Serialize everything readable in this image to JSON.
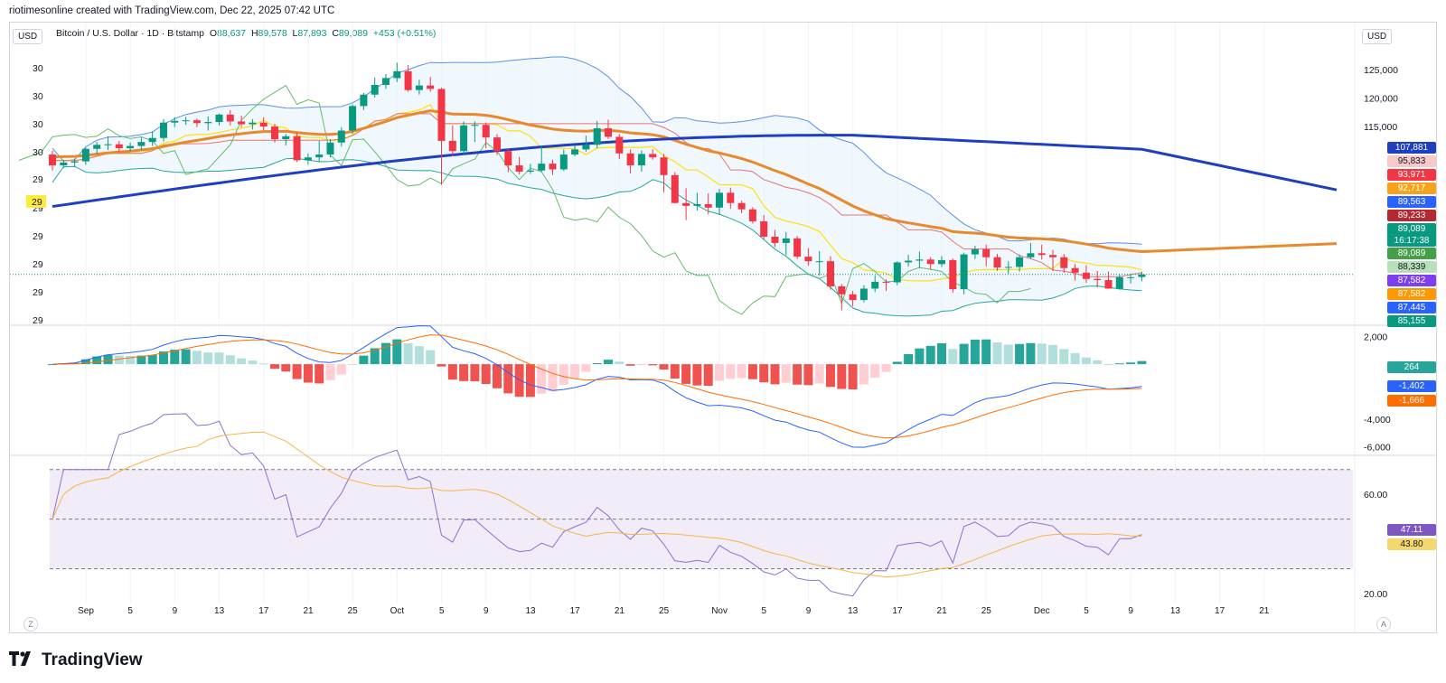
{
  "header_text": "riotimesonline created with TradingView.com, Dec 22, 2025 07:42 UTC",
  "currency_left": "USD",
  "currency_right": "USD",
  "legend": {
    "symbol": "Bitcoin / U.S. Dollar · 1D · Bitstamp",
    "o_label": "O",
    "o_value": "88,637",
    "h_label": "H",
    "h_value": "89,578",
    "l_label": "L",
    "l_value": "87,893",
    "c_label": "C",
    "c_value": "89,089",
    "change": "+453 (+0.51%)"
  },
  "brand": "TradingView",
  "corner_left": "Z",
  "corner_right": "A",
  "colors": {
    "up": "#089981",
    "down": "#f23645",
    "sma200": "#1e3fbf",
    "ema": "#e8892c",
    "bb": "#5b8fe8",
    "rsi": "#8e6fcf",
    "signal": "#f5b642"
  },
  "chart_data": [
    {
      "type": "candlestick",
      "name": "price",
      "y_tick_labels_right": [
        "125,000",
        "120,000",
        "115,000"
      ],
      "y_tick_labels_left": [
        "30",
        "30",
        "30",
        "30",
        "29",
        "29",
        "29",
        "29",
        "29",
        "29"
      ],
      "x_tick_labels": [
        "Sep",
        "5",
        "9",
        "13",
        "17",
        "21",
        "25",
        "Oct",
        "5",
        "9",
        "13",
        "17",
        "21",
        "25",
        "Nov",
        "5",
        "9",
        "13",
        "17",
        "21",
        "25",
        "Dec",
        "5",
        "9",
        "13",
        "17",
        "21"
      ],
      "ylim": [
        80500,
        128000
      ],
      "candles": [
        [
          110100,
          110800,
          107300,
          108200
        ],
        [
          108200,
          109200,
          107700,
          108700
        ],
        [
          108700,
          109400,
          107900,
          108900
        ],
        [
          108900,
          111300,
          108300,
          111100
        ],
        [
          111100,
          112300,
          110200,
          111800
        ],
        [
          111800,
          113300,
          110900,
          111900
        ],
        [
          111900,
          112500,
          110500,
          111200
        ],
        [
          111200,
          112200,
          110600,
          111600
        ],
        [
          111600,
          113100,
          110900,
          112300
        ],
        [
          112300,
          114200,
          111600,
          113000
        ],
        [
          113000,
          116300,
          112400,
          115700
        ],
        [
          115700,
          116600,
          114900,
          116000
        ],
        [
          116000,
          116700,
          115300,
          116100
        ],
        [
          116100,
          116400,
          114900,
          115600
        ],
        [
          115600,
          116800,
          114300,
          115800
        ],
        [
          115800,
          117300,
          115200,
          117100
        ],
        [
          117100,
          117900,
          115200,
          115900
        ],
        [
          115900,
          116900,
          114900,
          115400
        ],
        [
          115400,
          116300,
          114500,
          115700
        ],
        [
          115700,
          116600,
          114400,
          115000
        ],
        [
          115000,
          115500,
          112200,
          112800
        ],
        [
          112800,
          113700,
          111700,
          113300
        ],
        [
          113300,
          113900,
          108800,
          109100
        ],
        [
          109100,
          110300,
          108300,
          109600
        ],
        [
          109600,
          112500,
          108800,
          110100
        ],
        [
          110100,
          112800,
          109600,
          112200
        ],
        [
          112200,
          114900,
          111500,
          114300
        ],
        [
          114300,
          118900,
          113700,
          118600
        ],
        [
          118600,
          120900,
          117900,
          120600
        ],
        [
          120600,
          123600,
          120100,
          122300
        ],
        [
          122300,
          124200,
          121600,
          123500
        ],
        [
          123500,
          126200,
          122800,
          124700
        ],
        [
          124700,
          125800,
          121100,
          121400
        ],
        [
          121400,
          123200,
          120600,
          122200
        ],
        [
          122200,
          123700,
          121100,
          121600
        ],
        [
          121600,
          121800,
          104800,
          112500
        ],
        [
          112500,
          115200,
          109800,
          110700
        ],
        [
          110700,
          115900,
          110100,
          115200
        ],
        [
          115200,
          115900,
          112300,
          115300
        ],
        [
          115300,
          115700,
          111200,
          113100
        ],
        [
          113100,
          113700,
          110000,
          110700
        ],
        [
          110700,
          111200,
          107000,
          108200
        ],
        [
          108200,
          109700,
          106600,
          107100
        ],
        [
          107100,
          108500,
          106700,
          107300
        ],
        [
          107300,
          111700,
          107000,
          108500
        ],
        [
          108500,
          109200,
          106500,
          107500
        ],
        [
          107500,
          111000,
          107200,
          110100
        ],
        [
          110100,
          111700,
          109800,
          111000
        ],
        [
          111000,
          113400,
          110600,
          111800
        ],
        [
          111800,
          116000,
          111200,
          114700
        ],
        [
          114700,
          116200,
          112800,
          113200
        ],
        [
          113200,
          113700,
          109300,
          110300
        ],
        [
          110300,
          111000,
          106800,
          108200
        ],
        [
          108200,
          110800,
          107100,
          110200
        ],
        [
          110200,
          111000,
          109200,
          109600
        ],
        [
          109600,
          110200,
          103500,
          106500
        ],
        [
          106500,
          107000,
          101500,
          101600
        ],
        [
          101600,
          104200,
          98600,
          101100
        ],
        [
          101100,
          103400,
          100300,
          101400
        ],
        [
          101400,
          103300,
          99600,
          100800
        ],
        [
          100800,
          104100,
          99500,
          103400
        ],
        [
          103400,
          104300,
          100600,
          101600
        ],
        [
          101600,
          102000,
          99800,
          100500
        ],
        [
          100500,
          100900,
          98000,
          98400
        ],
        [
          98400,
          99500,
          95200,
          95700
        ],
        [
          95700,
          96900,
          93900,
          94600
        ],
        [
          94600,
          96500,
          92500,
          95400
        ],
        [
          95400,
          95800,
          91800,
          92200
        ],
        [
          92200,
          93700,
          90600,
          91400
        ],
        [
          91400,
          93200,
          88900,
          91400
        ],
        [
          91400,
          92300,
          86400,
          87000
        ],
        [
          87000,
          87400,
          82800,
          85600
        ],
        [
          85600,
          86200,
          83500,
          84600
        ],
        [
          84600,
          87200,
          84200,
          86600
        ],
        [
          86600,
          88900,
          86000,
          87800
        ],
        [
          87800,
          88200,
          86200,
          87700
        ],
        [
          87700,
          91400,
          87200,
          91200
        ],
        [
          91200,
          92500,
          90500,
          91500
        ],
        [
          91500,
          93100,
          90200,
          91700
        ],
        [
          91700,
          92100,
          89900,
          90900
        ],
        [
          90900,
          92300,
          90400,
          91600
        ],
        [
          91600,
          91900,
          85900,
          86500
        ],
        [
          86500,
          92900,
          85600,
          92600
        ],
        [
          92600,
          94100,
          91800,
          93500
        ],
        [
          93500,
          94300,
          90500,
          92100
        ],
        [
          92100,
          92700,
          89700,
          90300
        ],
        [
          90300,
          91400,
          89200,
          90400
        ],
        [
          90400,
          92600,
          89600,
          92100
        ],
        [
          92100,
          94600,
          91800,
          92800
        ],
        [
          92800,
          94300,
          91700,
          92500
        ],
        [
          92500,
          93400,
          89700,
          92100
        ],
        [
          92100,
          92700,
          89400,
          90200
        ],
        [
          90200,
          90900,
          88000,
          89400
        ],
        [
          89400,
          90700,
          87600,
          88300
        ],
        [
          88300,
          89700,
          86800,
          88100
        ],
        [
          88100,
          89600,
          86700,
          86600
        ],
        [
          86600,
          89000,
          86400,
          88600
        ],
        [
          88600,
          89200,
          87500,
          88600
        ],
        [
          88637,
          89578,
          87893,
          89089
        ]
      ]
    },
    {
      "type": "line",
      "name": "macd",
      "y_tick_labels_right": [
        "2,000",
        "-4,000",
        "-6,000"
      ],
      "ylim": [
        -6500,
        2700
      ]
    },
    {
      "type": "line",
      "name": "rsi",
      "y_tick_labels_right": [
        "60.00",
        "20.00"
      ],
      "ylim": [
        16,
        75
      ]
    }
  ],
  "price_badges": [
    {
      "text": "107,881",
      "color": "#1e3fbf",
      "value": 107881
    },
    {
      "text": "95,833",
      "color": "#f7c9c9",
      "value": 95833,
      "dark": true
    },
    {
      "text": "93,971",
      "color": "#f23645",
      "value": 93971
    },
    {
      "text": "92,717",
      "color": "#f7a21b",
      "value": 92717
    },
    {
      "text": "89,563",
      "color": "#2962ff",
      "value": 89563
    },
    {
      "text": "89,233",
      "color": "#b22833",
      "value": 89233
    },
    {
      "text": "89,089",
      "sub": "16:17:38",
      "color": "#089981",
      "value": 89089
    },
    {
      "text": "89,089",
      "color": "#43a047",
      "value": 89089
    },
    {
      "text": "88,339",
      "color": "#b9dfb9",
      "value": 88339,
      "dark": true
    },
    {
      "text": "87,582",
      "color": "#7e3ff2",
      "value": 87582
    },
    {
      "text": "87,582",
      "color": "#ff9800",
      "value": 87582
    },
    {
      "text": "87,445",
      "color": "#2962ff",
      "value": 87445
    },
    {
      "text": "85,155",
      "color": "#089981",
      "value": 85155
    }
  ],
  "macd_badges": [
    {
      "text": "264",
      "color": "#26a69a"
    },
    {
      "text": "-1,402",
      "color": "#2962ff"
    },
    {
      "text": "-1,666",
      "color": "#ff6d00"
    }
  ],
  "rsi_badges": [
    {
      "text": "47.11",
      "color": "#7e57c2"
    },
    {
      "text": "43.80",
      "color": "#f5d76e",
      "dark": true
    }
  ]
}
